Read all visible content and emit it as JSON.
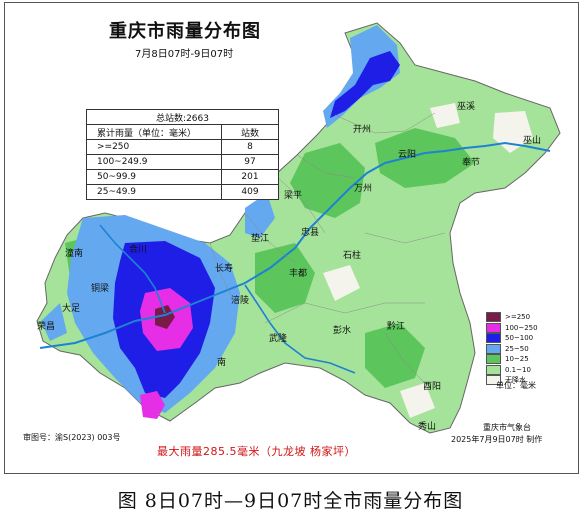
{
  "map": {
    "title": "重庆市雨量分布图",
    "date_range": "7月8日07时-9日07时",
    "stats_table": {
      "header": "总站数:2663",
      "col_level": "累计雨量（单位：毫米）",
      "col_count": "站数",
      "rows": [
        {
          "level": ">=250",
          "count": "8"
        },
        {
          "level": "100~249.9",
          "count": "97"
        },
        {
          "level": "50~99.9",
          "count": "201"
        },
        {
          "level": "25~49.9",
          "count": "409"
        }
      ]
    },
    "legend": [
      {
        "label": ">=250",
        "color": "#7a1a48"
      },
      {
        "label": "100~250",
        "color": "#e62ee6"
      },
      {
        "label": "50~100",
        "color": "#1e1ee6"
      },
      {
        "label": "25~50",
        "color": "#64a8f0"
      },
      {
        "label": "10~25",
        "color": "#5cc55c"
      },
      {
        "label": "0.1~10",
        "color": "#a6e39a"
      },
      {
        "label": "无降水",
        "color": "#f4f4ec"
      }
    ],
    "unit_label": "单位：毫米",
    "agency": "重庆市气象台",
    "issue_time": "2025年7月9日07时 制作",
    "approval_no": "审图号：渝S(2023) 003号",
    "max_rain": "最大雨量285.5毫米（九龙坡 杨家坪）",
    "places": {
      "wuxi": "巫溪",
      "wushan": "巫山",
      "kaizhou": "开州",
      "yunyang": "云阳",
      "fengjie": "奉节",
      "liangping": "梁平",
      "wanzhou": "万州",
      "dianjiang": "垫江",
      "zhongxian": "忠县",
      "shizhu": "石柱",
      "tongnan": "潼南",
      "hechuan": "合川",
      "changshou": "长寿",
      "fengdu": "丰都",
      "tongliang": "铜梁",
      "dazu": "大足",
      "fuling": "涪陵",
      "rongchang": "荣昌",
      "wulong": "武隆",
      "pengshui": "彭水",
      "qianjiang": "黔江",
      "nan": "南",
      "youyang": "酉阳",
      "xiushan": "秀山"
    }
  },
  "caption": "图  8日07时—9日07时全市雨量分布图",
  "colors": {
    "river": "#1e82d2",
    "border": "#555555"
  }
}
